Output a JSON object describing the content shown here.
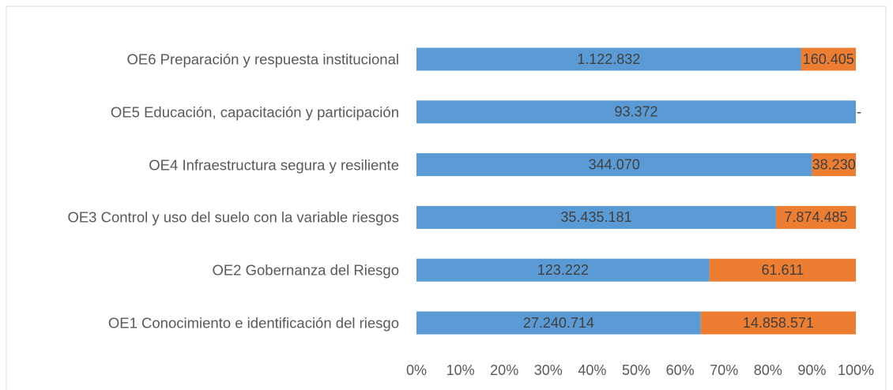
{
  "chart_data": {
    "type": "bar",
    "orientation": "horizontal",
    "stacking": "percent",
    "categories": [
      "OE1 Conocimiento e identificación del riesgo",
      "OE2 Gobernanza del Riesgo",
      "OE3 Control y uso del suelo con la variable riesgos",
      "OE4 Infraestructura segura y resiliente",
      "OE5 Educación, capacitación y participación",
      "OE6 Preparación y respuesta institucional"
    ],
    "series": [
      {
        "color": "#5b9bd5",
        "values": [
          27240714,
          123222,
          35435181,
          344070,
          93372,
          1122832
        ],
        "value_labels": [
          "27.240.714",
          "123.222",
          "35.435.181",
          "344.070",
          "93.372",
          "1.122.832"
        ]
      },
      {
        "color": "#ed7d31",
        "values": [
          14858571,
          61611,
          7874485,
          38230,
          0,
          160405
        ],
        "value_labels": [
          "14.858.571",
          "61.611",
          "7.874.485",
          "38.230",
          "-",
          "160.405"
        ]
      }
    ],
    "xlim": [
      0,
      100
    ],
    "xticks": [
      {
        "value": 0,
        "label": "0%"
      },
      {
        "value": 10,
        "label": "10%"
      },
      {
        "value": 20,
        "label": "20%"
      },
      {
        "value": 30,
        "label": "30%"
      },
      {
        "value": 40,
        "label": "40%"
      },
      {
        "value": 50,
        "label": "50%"
      },
      {
        "value": 60,
        "label": "60%"
      },
      {
        "value": 70,
        "label": "70%"
      },
      {
        "value": 80,
        "label": "80%"
      },
      {
        "value": 90,
        "label": "90%"
      },
      {
        "value": 100,
        "label": "100%"
      }
    ],
    "grid": false
  }
}
